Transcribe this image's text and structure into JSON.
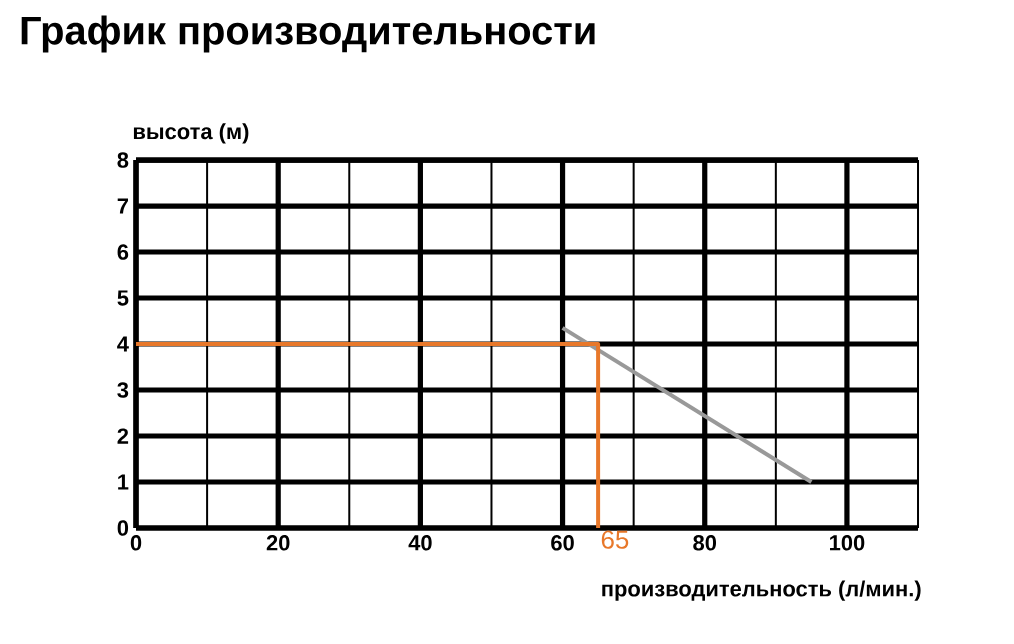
{
  "chart_data": {
    "type": "line",
    "title": "График производительности",
    "xlabel": "производительность (л/мин.)",
    "ylabel": "высота (м)",
    "xlim": [
      0,
      110
    ],
    "ylim": [
      0,
      8
    ],
    "xticks": [
      0,
      20,
      40,
      60,
      80,
      100
    ],
    "yticks": [
      0,
      1,
      2,
      3,
      4,
      5,
      6,
      7,
      8
    ],
    "grid": true,
    "marker": "none",
    "line_style": "solid",
    "series": [
      {
        "color": "#999999",
        "x": [
          60,
          95
        ],
        "values": [
          4.35,
          1.0
        ]
      },
      {
        "color": "#e8782a",
        "x": [
          0,
          65,
          65
        ],
        "values": [
          4,
          4,
          0
        ]
      }
    ],
    "annotations": [
      {
        "text": "65",
        "x": 65,
        "y": 0
      }
    ]
  }
}
